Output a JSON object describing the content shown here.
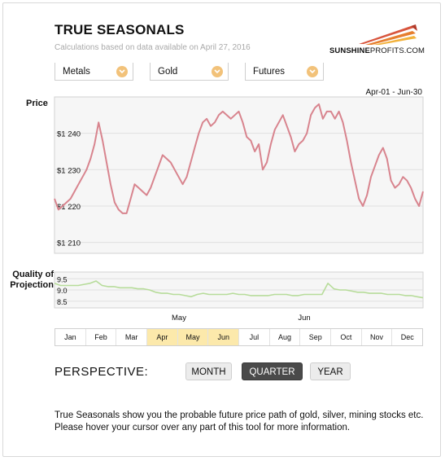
{
  "header": {
    "title": "TRUE SEASONALS",
    "subtitle": "Calculations based on data available on April 27, 2016",
    "logo_bold": "SUNSHINE",
    "logo_light": "PROFITS.COM"
  },
  "selectors": [
    {
      "value": "Metals"
    },
    {
      "value": "Gold"
    },
    {
      "value": "Futures"
    }
  ],
  "date_range": "Apr-01 - Jun-30",
  "colors": {
    "price_line": "#d8848e",
    "quality_line": "#b7dc9a",
    "selected_month": "#fce9ab",
    "active_button": "#4a4a4a"
  },
  "chart_data": [
    {
      "type": "line",
      "title": "Price",
      "ylim": [
        1207,
        1250
      ],
      "yticks": [
        1210,
        1220,
        1230,
        1240
      ],
      "ytick_labels": [
        "$1 210",
        "$1 220",
        "$1 230",
        "$1 240"
      ],
      "grid": true,
      "series": [
        {
          "values": [
            1222,
            1219,
            1220,
            1221,
            1222,
            1224,
            1226,
            1228,
            1230,
            1233,
            1237,
            1243,
            1238,
            1232,
            1226,
            1221,
            1219,
            1218,
            1218,
            1222,
            1226,
            1225,
            1224,
            1223,
            1225,
            1228,
            1231,
            1234,
            1233,
            1232,
            1230,
            1228,
            1226,
            1228,
            1232,
            1236,
            1240,
            1243,
            1244,
            1242,
            1243,
            1245,
            1246,
            1245,
            1244,
            1245,
            1246,
            1243,
            1239,
            1238,
            1235,
            1237,
            1230,
            1232,
            1237,
            1241,
            1243,
            1245,
            1242,
            1239,
            1235,
            1237,
            1238,
            1240,
            1245,
            1247,
            1248,
            1244,
            1246,
            1246,
            1244,
            1246,
            1243,
            1238,
            1232,
            1227,
            1222,
            1220,
            1223,
            1228,
            1231,
            1234,
            1236,
            1233,
            1227,
            1225,
            1226,
            1228,
            1227,
            1225,
            1222,
            1220,
            1224
          ]
        }
      ]
    },
    {
      "type": "line",
      "title": "Quality of Projection",
      "ylim": [
        8.2,
        9.8
      ],
      "yticks": [
        8.5,
        9.0,
        9.5
      ],
      "ytick_labels": [
        "8.5",
        "9.0",
        "9.5"
      ],
      "x_month_labels": [
        "May",
        "Jun"
      ],
      "series": [
        {
          "values": [
            9.3,
            9.2,
            9.2,
            9.2,
            9.2,
            9.25,
            9.3,
            9.4,
            9.2,
            9.15,
            9.15,
            9.1,
            9.1,
            9.1,
            9.05,
            9.05,
            9.0,
            8.9,
            8.85,
            8.85,
            8.8,
            8.8,
            8.75,
            8.7,
            8.8,
            8.85,
            8.8,
            8.8,
            8.8,
            8.8,
            8.85,
            8.8,
            8.8,
            8.75,
            8.75,
            8.75,
            8.75,
            8.8,
            8.8,
            8.8,
            8.75,
            8.75,
            8.8,
            8.8,
            8.8,
            8.8,
            9.3,
            9.05,
            9.0,
            9.0,
            8.95,
            8.9,
            8.9,
            8.85,
            8.85,
            8.85,
            8.8,
            8.8,
            8.8,
            8.75,
            8.75,
            8.7,
            8.65
          ]
        }
      ]
    }
  ],
  "months": [
    "Jan",
    "Feb",
    "Mar",
    "Apr",
    "May",
    "Jun",
    "Jul",
    "Aug",
    "Sep",
    "Oct",
    "Nov",
    "Dec"
  ],
  "selected_months": [
    "Apr",
    "May",
    "Jun"
  ],
  "perspective": {
    "label": "PERSPECTIVE:",
    "buttons": [
      "MONTH",
      "QUARTER",
      "YEAR"
    ],
    "active": "QUARTER"
  },
  "description": "True Seasonals show you the probable future price path of gold, silver, mining stocks etc. Please hover your cursor over any part of this tool for more information."
}
